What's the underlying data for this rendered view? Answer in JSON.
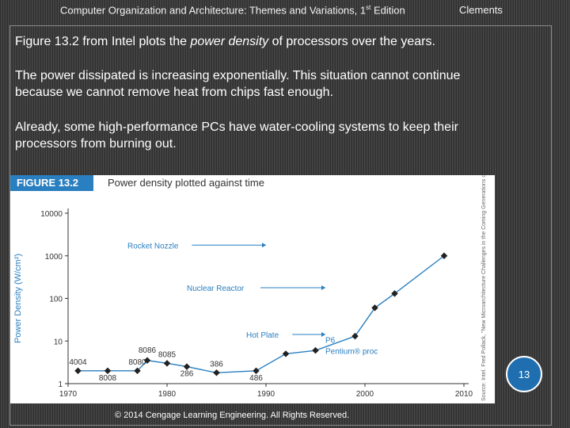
{
  "header": {
    "book_title": "Computer Organization and Architecture: Themes and Variations, 1",
    "edition_sup": "st",
    "edition_tail": " Edition",
    "author": "Clements"
  },
  "content": {
    "p1_before": "Figure 13.2 from Intel plots the ",
    "p1_emph": "power density",
    "p1_after": " of processors over the years.",
    "p2_line1": "The power dissipated is increasing exponentially. This situation cannot continue",
    "p2_line2": "because we cannot remove heat from chips fast enough.",
    "p3_line1": "Already, some high-performance PCs have water-cooling systems to keep their",
    "p3_line2": "processors from burning out."
  },
  "figure": {
    "label": "FIGURE 13.2",
    "caption": "Power density plotted against time",
    "side_credit": "Source: Intel. Fred Pollack, \"New Microarchitecture Challenges in the Coming Generations of CMOS Process Technologies,\" Reprinted with permission of Intel Corporation."
  },
  "chart_data": {
    "type": "line",
    "title": "Power density plotted against time",
    "xlabel": "",
    "ylabel": "Power Density (W/cm²)",
    "y_scale": "log",
    "xlim": [
      1970,
      2010
    ],
    "ylim": [
      1,
      10000
    ],
    "x_ticks": [
      "1970",
      "1980",
      "1990",
      "2000",
      "2010"
    ],
    "y_ticks": [
      "1",
      "10",
      "100",
      "1000",
      "10000"
    ],
    "grid": false,
    "series": [
      {
        "color": "#2a7fc0",
        "points": [
          {
            "x": 1971,
            "y": 2.0,
            "label": "4004"
          },
          {
            "x": 1974,
            "y": 2.0,
            "label": "8008"
          },
          {
            "x": 1977,
            "y": 2.0,
            "label": "8080"
          },
          {
            "x": 1978,
            "y": 3.5,
            "label": "8086"
          },
          {
            "x": 1980,
            "y": 3.0,
            "label": "8085"
          },
          {
            "x": 1982,
            "y": 2.5,
            "label": "286"
          },
          {
            "x": 1985,
            "y": 1.8,
            "label": "386"
          },
          {
            "x": 1989,
            "y": 2.0,
            "label": "486"
          },
          {
            "x": 1992,
            "y": 5.0,
            "label": ""
          },
          {
            "x": 1995,
            "y": 6.0,
            "label": ""
          },
          {
            "x": 1999,
            "y": 13.0,
            "label": ""
          },
          {
            "x": 2001,
            "y": 60.0,
            "label": ""
          },
          {
            "x": 2003,
            "y": 130.0,
            "label": ""
          },
          {
            "x": 2008,
            "y": 1000.0,
            "label": ""
          }
        ]
      }
    ],
    "annotations": [
      {
        "text": "Rocket Nozzle",
        "x": 1976,
        "y": 1500
      },
      {
        "text": "Nuclear Reactor",
        "x": 1982,
        "y": 150
      },
      {
        "text": "Hot Plate",
        "x": 1988,
        "y": 12
      },
      {
        "text": "P6",
        "x": 1996,
        "y": 9
      },
      {
        "text": "Pentium® proc",
        "x": 1996,
        "y": 5
      }
    ]
  },
  "slide_number": "13",
  "footer": "© 2014 Cengage Learning Engineering. All Rights Reserved."
}
